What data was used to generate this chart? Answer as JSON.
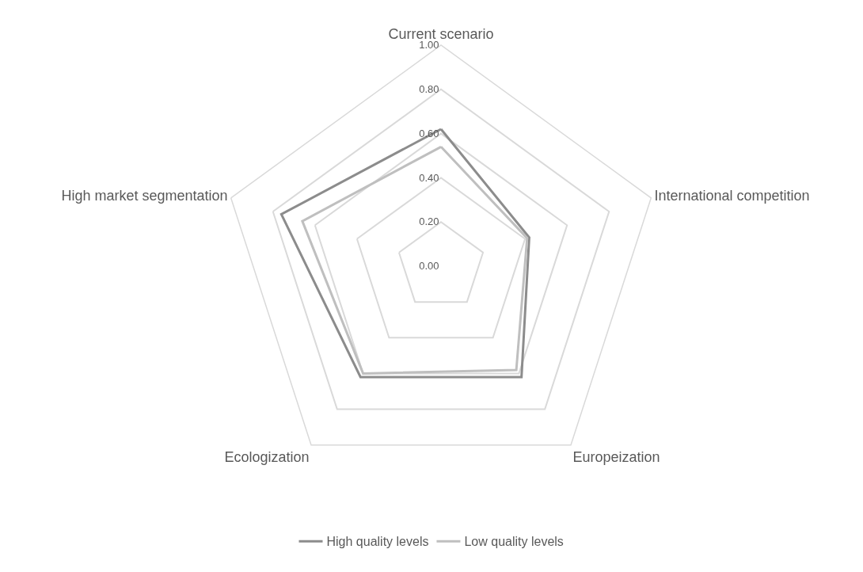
{
  "chart_data": {
    "type": "radar",
    "categories": [
      "Current scenario",
      "International competition",
      "Europeization",
      "Ecologization",
      "High market segmentation"
    ],
    "series": [
      {
        "name": "High quality levels",
        "color": "#8c8c8c",
        "values": [
          0.62,
          0.42,
          0.62,
          0.62,
          0.76
        ]
      },
      {
        "name": "Low quality levels",
        "color": "#bfbfbf",
        "values": [
          0.54,
          0.41,
          0.58,
          0.6,
          0.66
        ]
      }
    ],
    "ylim": [
      0,
      1
    ],
    "yticks": [
      {
        "value": 0,
        "label": "0.00"
      },
      {
        "value": 0.2,
        "label": "0.20"
      },
      {
        "value": 0.4,
        "label": "0.40"
      },
      {
        "value": 0.6,
        "label": "0.60"
      },
      {
        "value": 0.8,
        "label": "0.80"
      },
      {
        "value": 1,
        "label": "1.00"
      }
    ],
    "grid": true,
    "legend": "bottom",
    "marker": "none",
    "line_style": "solid"
  }
}
